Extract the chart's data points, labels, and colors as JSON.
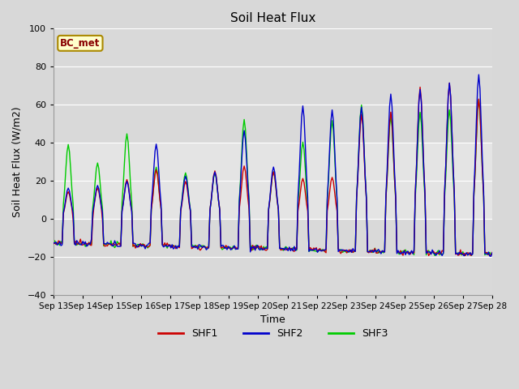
{
  "title": "Soil Heat Flux",
  "xlabel": "Time",
  "ylabel": "Soil Heat Flux (W/m2)",
  "ylim": [
    -40,
    100
  ],
  "start_day": 13,
  "num_days": 15,
  "yticks": [
    -40,
    -20,
    0,
    20,
    40,
    60,
    80,
    100
  ],
  "colors": {
    "SHF1": "#cc0000",
    "SHF2": "#0000cc",
    "SHF3": "#00cc00"
  },
  "legend_label": "BC_met",
  "fig_facecolor": "#d8d8d8",
  "plot_bg_color": "#e8e8e8",
  "shaded_band_light": [
    0,
    40
  ],
  "shaded_band_dark1": [
    -40,
    0
  ],
  "shaded_band_dark2": [
    40,
    100
  ],
  "linewidth": 1.0,
  "hours_per_day": 24
}
